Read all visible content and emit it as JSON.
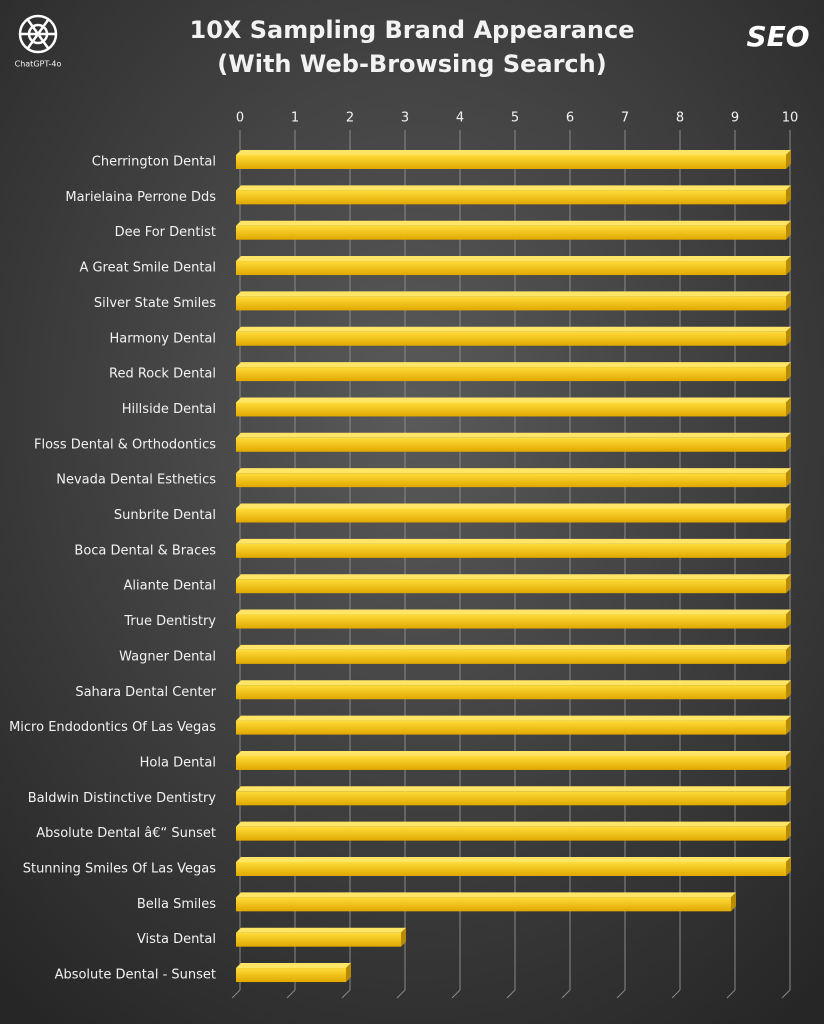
{
  "chart_data": {
    "type": "bar",
    "orientation": "horizontal",
    "title_lines": [
      "10X Sampling Brand Appearance",
      "(With Web-Browsing Search)"
    ],
    "logos": {
      "left": "ChatGPT-4o",
      "right": "SEO"
    },
    "categories": [
      "Cherrington Dental",
      "Marielaina Perrone Dds",
      "Dee For Dentist",
      "A Great Smile Dental",
      "Silver State Smiles",
      "Harmony Dental",
      "Red Rock Dental",
      "Hillside Dental",
      "Floss Dental & Orthodontics",
      "Nevada Dental Esthetics",
      "Sunbrite Dental",
      "Boca Dental & Braces",
      "Aliante Dental",
      "True Dentistry",
      "Wagner Dental",
      "Sahara Dental Center",
      "Micro Endodontics Of Las Vegas",
      "Hola Dental",
      "Baldwin Distinctive Dentistry",
      "Absolute Dental â€“ Sunset",
      "Stunning Smiles Of Las Vegas",
      "Bella Smiles",
      "Vista Dental",
      "Absolute Dental - Sunset"
    ],
    "values": [
      10,
      10,
      10,
      10,
      10,
      10,
      10,
      10,
      10,
      10,
      10,
      10,
      10,
      10,
      10,
      10,
      10,
      10,
      10,
      10,
      10,
      9,
      3,
      2
    ],
    "color": "#f7c600",
    "xlim": [
      0,
      10
    ],
    "xticks": [
      0,
      1,
      2,
      3,
      4,
      5,
      6,
      7,
      8,
      9,
      10
    ],
    "grid": true
  }
}
